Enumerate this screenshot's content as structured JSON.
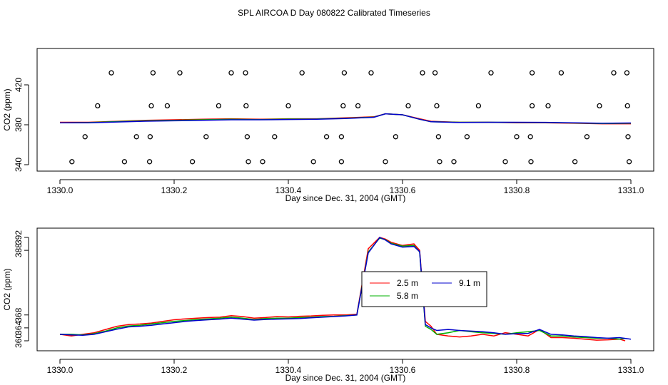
{
  "page": {
    "title": "SPL AIRCOA D  Day 080822  Calibrated Timeseries"
  },
  "chart_data": [
    {
      "type": "line",
      "id": "top",
      "xlabel": "Day since Dec. 31, 2004 (GMT)",
      "ylabel": "CO2 (ppm)",
      "xlim": [
        1330.0,
        1331.0
      ],
      "ylim": [
        340,
        440
      ],
      "xticks": [
        "1330.0",
        "1330.2",
        "1330.4",
        "1330.6",
        "1330.8",
        "1331.0"
      ],
      "xtick_values": [
        1330.0,
        1330.2,
        1330.4,
        1330.6,
        1330.8,
        1331.0
      ],
      "yticks": [
        "340",
        "380",
        "420"
      ],
      "ytick_values": [
        340,
        380,
        420
      ],
      "grid": false,
      "series": [
        {
          "color": "#ff0000",
          "x": [
            1330.0,
            1330.05,
            1330.1,
            1330.15,
            1330.2,
            1330.25,
            1330.3,
            1330.35,
            1330.4,
            1330.45,
            1330.5,
            1330.55,
            1330.57,
            1330.6,
            1330.63,
            1330.65,
            1330.7,
            1330.75,
            1330.8,
            1330.85,
            1330.9,
            1330.95,
            1331.0
          ],
          "values": [
            382.5,
            382.5,
            383.5,
            384.5,
            385,
            385.5,
            386,
            385.5,
            386,
            386,
            387,
            388,
            391,
            390,
            386,
            383.5,
            382.5,
            382.5,
            382,
            382,
            381.5,
            381,
            381
          ]
        },
        {
          "color": "#00b000",
          "x": [
            1330.0,
            1330.05,
            1330.1,
            1330.15,
            1330.2,
            1330.25,
            1330.3,
            1330.35,
            1330.4,
            1330.45,
            1330.5,
            1330.55,
            1330.57,
            1330.6,
            1330.63,
            1330.65,
            1330.7,
            1330.75,
            1330.8,
            1330.85,
            1330.9,
            1330.95,
            1331.0
          ],
          "values": [
            382,
            382.2,
            383.2,
            384,
            384.5,
            385,
            385.5,
            385.2,
            385.7,
            385.8,
            386.5,
            387.7,
            391,
            390,
            385.5,
            383,
            382.5,
            382.5,
            382.3,
            382.2,
            381.8,
            381.3,
            381.5
          ]
        },
        {
          "color": "#0000cc",
          "x": [
            1330.0,
            1330.05,
            1330.1,
            1330.15,
            1330.2,
            1330.25,
            1330.3,
            1330.35,
            1330.4,
            1330.45,
            1330.5,
            1330.55,
            1330.57,
            1330.6,
            1330.63,
            1330.65,
            1330.7,
            1330.75,
            1330.8,
            1330.85,
            1330.9,
            1330.95,
            1331.0
          ],
          "values": [
            382,
            382,
            382.8,
            383.6,
            384,
            384.5,
            385,
            385,
            385.3,
            385.5,
            386.2,
            387.5,
            391,
            390,
            385.5,
            383,
            382.3,
            382.5,
            382.5,
            382.4,
            382,
            381.5,
            381.8
          ]
        }
      ],
      "markers": [
        {
          "x": 1330.09,
          "y": 432
        },
        {
          "x": 1330.163,
          "y": 432
        },
        {
          "x": 1330.21,
          "y": 432
        },
        {
          "x": 1330.3,
          "y": 432
        },
        {
          "x": 1330.325,
          "y": 432
        },
        {
          "x": 1330.424,
          "y": 432
        },
        {
          "x": 1330.498,
          "y": 432
        },
        {
          "x": 1330.545,
          "y": 432
        },
        {
          "x": 1330.635,
          "y": 432
        },
        {
          "x": 1330.657,
          "y": 432
        },
        {
          "x": 1330.755,
          "y": 432
        },
        {
          "x": 1330.827,
          "y": 432
        },
        {
          "x": 1330.878,
          "y": 432
        },
        {
          "x": 1330.97,
          "y": 432
        },
        {
          "x": 1330.993,
          "y": 432
        },
        {
          "x": 1330.066,
          "y": 399
        },
        {
          "x": 1330.16,
          "y": 399
        },
        {
          "x": 1330.188,
          "y": 399
        },
        {
          "x": 1330.278,
          "y": 399
        },
        {
          "x": 1330.326,
          "y": 399
        },
        {
          "x": 1330.4,
          "y": 399
        },
        {
          "x": 1330.496,
          "y": 399
        },
        {
          "x": 1330.522,
          "y": 399
        },
        {
          "x": 1330.61,
          "y": 399
        },
        {
          "x": 1330.66,
          "y": 399
        },
        {
          "x": 1330.733,
          "y": 399
        },
        {
          "x": 1330.827,
          "y": 399
        },
        {
          "x": 1330.855,
          "y": 399
        },
        {
          "x": 1330.945,
          "y": 399
        },
        {
          "x": 1330.994,
          "y": 399
        },
        {
          "x": 1330.044,
          "y": 368
        },
        {
          "x": 1330.134,
          "y": 368
        },
        {
          "x": 1330.158,
          "y": 368
        },
        {
          "x": 1330.256,
          "y": 368
        },
        {
          "x": 1330.328,
          "y": 368
        },
        {
          "x": 1330.376,
          "y": 368
        },
        {
          "x": 1330.467,
          "y": 368
        },
        {
          "x": 1330.493,
          "y": 368
        },
        {
          "x": 1330.588,
          "y": 368
        },
        {
          "x": 1330.663,
          "y": 368
        },
        {
          "x": 1330.713,
          "y": 368
        },
        {
          "x": 1330.8,
          "y": 368
        },
        {
          "x": 1330.824,
          "y": 368
        },
        {
          "x": 1330.923,
          "y": 368
        },
        {
          "x": 1330.995,
          "y": 368
        },
        {
          "x": 1330.021,
          "y": 343
        },
        {
          "x": 1330.113,
          "y": 343
        },
        {
          "x": 1330.157,
          "y": 343
        },
        {
          "x": 1330.232,
          "y": 343
        },
        {
          "x": 1330.33,
          "y": 343
        },
        {
          "x": 1330.355,
          "y": 343
        },
        {
          "x": 1330.444,
          "y": 343
        },
        {
          "x": 1330.493,
          "y": 343
        },
        {
          "x": 1330.57,
          "y": 343
        },
        {
          "x": 1330.665,
          "y": 343
        },
        {
          "x": 1330.69,
          "y": 343
        },
        {
          "x": 1330.78,
          "y": 343
        },
        {
          "x": 1330.825,
          "y": 343
        },
        {
          "x": 1330.902,
          "y": 343
        },
        {
          "x": 1330.997,
          "y": 343
        }
      ]
    },
    {
      "type": "line",
      "id": "bottom",
      "xlabel": "Day since Dec. 31, 2004 (GMT)",
      "ylabel": "CO2 (ppm)",
      "xlim": [
        1330.0,
        1331.0
      ],
      "ylim": [
        359.5,
        392.5
      ],
      "xticks": [
        "1330.0",
        "1330.2",
        "1330.4",
        "1330.6",
        "1330.8",
        "1331.0"
      ],
      "xtick_values": [
        1330.0,
        1330.2,
        1330.4,
        1330.6,
        1330.8,
        1331.0
      ],
      "yticks": [
        "360",
        "364",
        "368",
        "388",
        "392"
      ],
      "ytick_values": [
        360,
        364,
        368,
        388,
        392
      ],
      "grid": false,
      "legend": {
        "placement": "center-right"
      },
      "series": [
        {
          "name": "2.5 m",
          "color": "#ff0000",
          "x": [
            1330.0,
            1330.02,
            1330.04,
            1330.06,
            1330.08,
            1330.1,
            1330.12,
            1330.14,
            1330.16,
            1330.18,
            1330.2,
            1330.22,
            1330.24,
            1330.26,
            1330.28,
            1330.3,
            1330.32,
            1330.34,
            1330.36,
            1330.38,
            1330.4,
            1330.42,
            1330.44,
            1330.46,
            1330.48,
            1330.5,
            1330.52,
            1330.54,
            1330.56,
            1330.57,
            1330.58,
            1330.6,
            1330.62,
            1330.63,
            1330.64,
            1330.65,
            1330.66,
            1330.68,
            1330.7,
            1330.72,
            1330.74,
            1330.76,
            1330.78,
            1330.8,
            1330.82,
            1330.84,
            1330.86,
            1330.88,
            1330.9,
            1330.92,
            1330.94,
            1330.96,
            1330.98,
            1330.99
          ],
          "values": [
            362,
            361.5,
            362,
            362.5,
            363.5,
            364.5,
            365,
            365.2,
            365.5,
            366,
            366.5,
            366.8,
            367,
            367.2,
            367.3,
            367.8,
            367.5,
            367,
            367.2,
            367.5,
            367.4,
            367.6,
            367.7,
            367.9,
            368,
            368,
            368.2,
            388.5,
            392,
            391.5,
            390.5,
            389.5,
            390,
            388,
            366,
            364.5,
            362,
            361.5,
            361.2,
            361.5,
            362,
            361.5,
            362.5,
            362,
            361.5,
            363.5,
            361,
            361,
            360.8,
            360.5,
            360.2,
            360.3,
            360.5,
            360
          ]
        },
        {
          "name": "5.8 m",
          "color": "#00b000",
          "x": [
            1330.0,
            1330.02,
            1330.04,
            1330.06,
            1330.08,
            1330.1,
            1330.12,
            1330.14,
            1330.16,
            1330.18,
            1330.2,
            1330.22,
            1330.24,
            1330.26,
            1330.28,
            1330.3,
            1330.32,
            1330.34,
            1330.36,
            1330.38,
            1330.4,
            1330.42,
            1330.44,
            1330.46,
            1330.48,
            1330.5,
            1330.52,
            1330.54,
            1330.56,
            1330.57,
            1330.58,
            1330.6,
            1330.62,
            1330.63,
            1330.64,
            1330.65,
            1330.66,
            1330.68,
            1330.7,
            1330.72,
            1330.74,
            1330.76,
            1330.78,
            1330.8,
            1330.82,
            1330.84,
            1330.86,
            1330.88,
            1330.9,
            1330.92,
            1330.94,
            1330.96,
            1330.98,
            1330.99
          ],
          "values": [
            362,
            362,
            361.8,
            362.2,
            363,
            364,
            364.6,
            364.8,
            365.2,
            365.6,
            366,
            366.3,
            366.6,
            366.8,
            367,
            367.3,
            367,
            366.6,
            366.9,
            367,
            367,
            367.2,
            367.3,
            367.5,
            367.6,
            367.8,
            368,
            387.5,
            391.8,
            391.3,
            390.2,
            389.3,
            389.5,
            387.5,
            364.5,
            363.5,
            362,
            362.5,
            363.2,
            362.8,
            362.5,
            362.3,
            362,
            362.5,
            362.8,
            363.2,
            361.5,
            361.5,
            361.2,
            361,
            360.8,
            360.8,
            360.5,
            360.7
          ]
        },
        {
          "name": "9.1 m",
          "color": "#0000cc",
          "x": [
            1330.0,
            1330.02,
            1330.04,
            1330.06,
            1330.08,
            1330.1,
            1330.12,
            1330.14,
            1330.16,
            1330.18,
            1330.2,
            1330.22,
            1330.24,
            1330.26,
            1330.28,
            1330.3,
            1330.32,
            1330.34,
            1330.36,
            1330.38,
            1330.4,
            1330.42,
            1330.44,
            1330.46,
            1330.48,
            1330.5,
            1330.52,
            1330.54,
            1330.56,
            1330.57,
            1330.58,
            1330.6,
            1330.62,
            1330.63,
            1330.64,
            1330.65,
            1330.66,
            1330.68,
            1330.7,
            1330.72,
            1330.74,
            1330.76,
            1330.78,
            1330.8,
            1330.82,
            1330.84,
            1330.86,
            1330.88,
            1330.9,
            1330.92,
            1330.94,
            1330.96,
            1330.98,
            1331.0
          ],
          "values": [
            362,
            361.8,
            361.7,
            362,
            362.8,
            363.6,
            364.3,
            364.5,
            364.8,
            365.2,
            365.6,
            366,
            366.3,
            366.5,
            366.7,
            367,
            366.7,
            366.4,
            366.6,
            366.7,
            366.8,
            366.9,
            367.1,
            367.3,
            367.5,
            367.7,
            368,
            387.2,
            392,
            391.2,
            390,
            389,
            389.2,
            387.6,
            365,
            364,
            363.2,
            363.5,
            363.2,
            363,
            362.8,
            362.5,
            362,
            362.2,
            362.3,
            363.5,
            362,
            361.8,
            361.5,
            361.3,
            361,
            360.8,
            361,
            360.5
          ]
        }
      ]
    }
  ]
}
